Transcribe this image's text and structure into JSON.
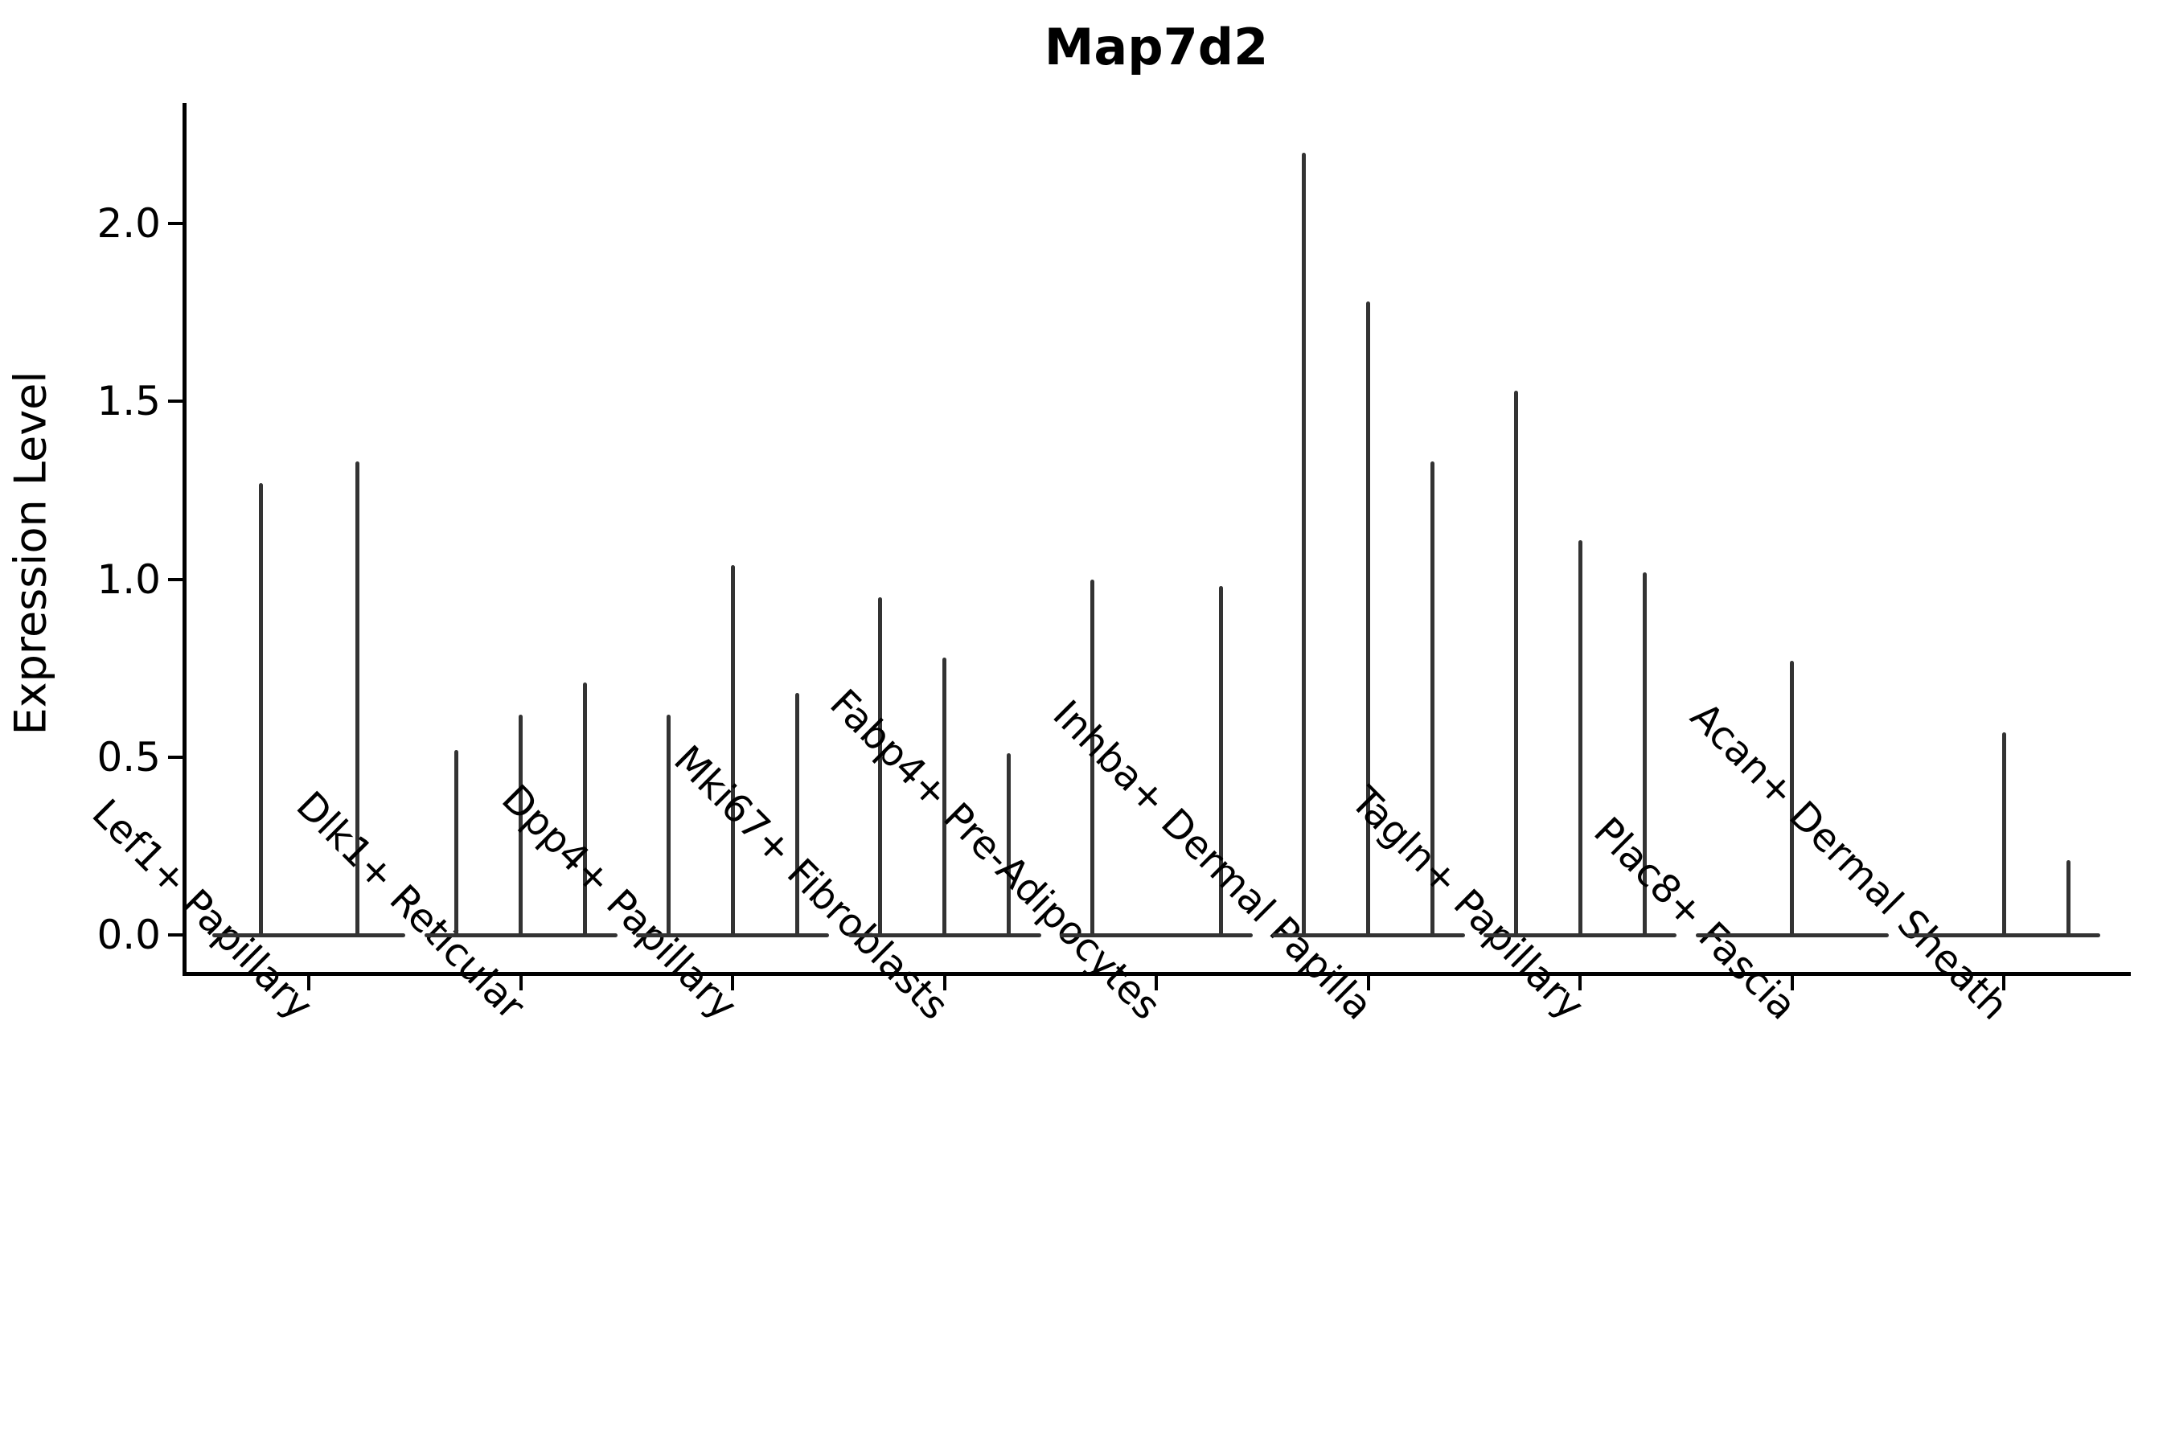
{
  "title": "Map7d2",
  "y_axis_label": "Expression Level",
  "chart_data": {
    "type": "violin",
    "subtype": "thin-spike violins (single-cell gene expression)",
    "title": "Map7d2",
    "xlabel": "",
    "ylabel": "Expression Level",
    "categories": [
      "Lef1+ Papillary",
      "Dlk1+ Reticular",
      "Dpp4+ Papillary",
      "Mki67+ Fibroblasts",
      "Fabp4+ Pre-Adipocytes",
      "Inhba+ Dermal Papilla",
      "Tagln+ Papillary",
      "Plac8+ Fascia",
      "Acan+ Dermal Sheath"
    ],
    "groups": [
      {
        "category": "Lef1+ Papillary",
        "violin_peak_heights": [
          1.27,
          1.33
        ]
      },
      {
        "category": "Dlk1+ Reticular",
        "violin_peak_heights": [
          0.52,
          0.62,
          0.71
        ]
      },
      {
        "category": "Dpp4+ Papillary",
        "violin_peak_heights": [
          0.62,
          1.04,
          0.68
        ]
      },
      {
        "category": "Mki67+ Fibroblasts",
        "violin_peak_heights": [
          0.95,
          0.78,
          0.51
        ]
      },
      {
        "category": "Fabp4+ Pre-Adipocytes",
        "violin_peak_heights": [
          1.0,
          0,
          0.98
        ]
      },
      {
        "category": "Inhba+ Dermal Papilla",
        "violin_peak_heights": [
          2.2,
          1.78,
          1.33
        ]
      },
      {
        "category": "Tagln+ Papillary",
        "violin_peak_heights": [
          1.53,
          1.11,
          1.02
        ]
      },
      {
        "category": "Plac8+ Fascia",
        "violin_peak_heights": [
          0,
          0.77,
          0
        ]
      },
      {
        "category": "Acan+ Dermal Sheath",
        "violin_peak_heights": [
          0,
          0.57,
          0.21
        ]
      }
    ],
    "yticks": [
      0.0,
      0.5,
      1.0,
      1.5,
      2.0
    ],
    "ytick_labels": [
      "0.0",
      "0.5",
      "1.0",
      "1.5",
      "2.0"
    ],
    "ylim": [
      -0.1,
      2.33
    ],
    "grid": false,
    "legend": "none",
    "violin_color": "#333333",
    "axis_color": "#000000",
    "note": "A height of 0 means the violin is flat on the baseline (no expressing cells spike)."
  }
}
